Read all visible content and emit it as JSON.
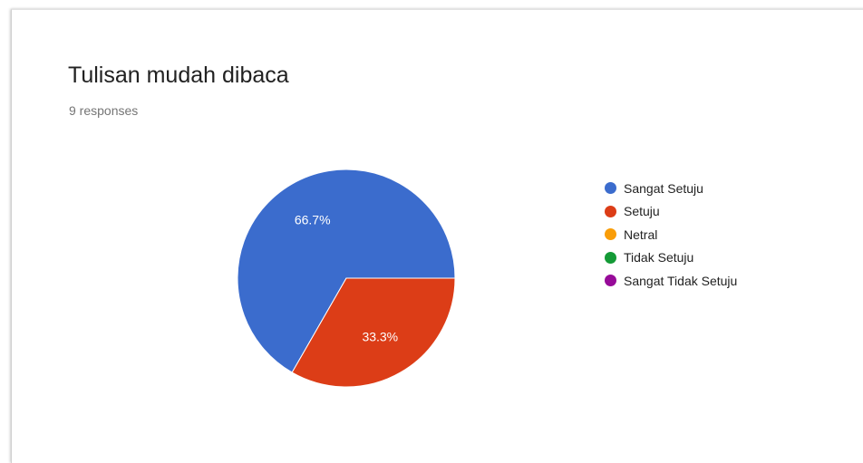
{
  "header": {
    "title": "Tulisan mudah dibaca",
    "responses": "9 responses"
  },
  "chart_data": {
    "type": "pie",
    "categories": [
      "Sangat Setuju",
      "Setuju",
      "Netral",
      "Tidak Setuju",
      "Sangat Tidak Setuju"
    ],
    "values": [
      66.7,
      33.3,
      0,
      0,
      0
    ],
    "slice_labels": [
      "66.7%",
      "33.3%",
      "",
      "",
      ""
    ],
    "colors": [
      "#3b6ccd",
      "#dc3d17",
      "#f99d08",
      "#149a36",
      "#970b99"
    ],
    "legend_position": "right"
  }
}
